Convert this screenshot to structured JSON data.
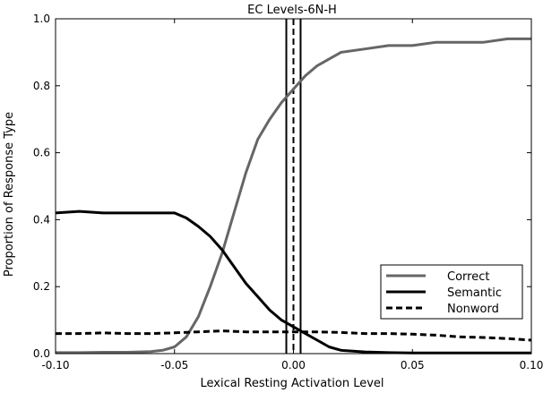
{
  "chart_data": {
    "type": "line",
    "title": "EC Levels-6N-H",
    "xlabel": "Lexical Resting Activation Level",
    "ylabel": "Proportion of Response Type",
    "xlim": [
      -0.1,
      0.1
    ],
    "ylim": [
      0.0,
      1.0
    ],
    "x_ticks": [
      -0.1,
      -0.05,
      0.0,
      0.05,
      0.1
    ],
    "x_tick_labels": [
      "-0.10",
      "-0.05",
      "0.00",
      "0.05",
      "0.10"
    ],
    "y_ticks": [
      0.0,
      0.2,
      0.4,
      0.6,
      0.8,
      1.0
    ],
    "y_tick_labels": [
      "0.0",
      "0.2",
      "0.4",
      "0.6",
      "0.8",
      "1.0"
    ],
    "grid": false,
    "legend_position": "lower-right",
    "series": [
      {
        "name": "Correct",
        "color": "#666666",
        "line_style": "solid",
        "x": [
          -0.1,
          -0.09,
          -0.08,
          -0.07,
          -0.06,
          -0.055,
          -0.05,
          -0.045,
          -0.04,
          -0.035,
          -0.03,
          -0.025,
          -0.02,
          -0.015,
          -0.01,
          -0.005,
          0.0,
          0.005,
          0.01,
          0.015,
          0.02,
          0.03,
          0.04,
          0.05,
          0.06,
          0.07,
          0.08,
          0.09,
          0.1
        ],
        "y": [
          0.003,
          0.003,
          0.004,
          0.004,
          0.006,
          0.01,
          0.02,
          0.05,
          0.11,
          0.2,
          0.3,
          0.42,
          0.54,
          0.64,
          0.7,
          0.75,
          0.79,
          0.83,
          0.86,
          0.88,
          0.9,
          0.91,
          0.92,
          0.92,
          0.93,
          0.93,
          0.93,
          0.94,
          0.94
        ]
      },
      {
        "name": "Semantic",
        "color": "#000000",
        "line_style": "solid",
        "x": [
          -0.1,
          -0.09,
          -0.08,
          -0.07,
          -0.06,
          -0.05,
          -0.045,
          -0.04,
          -0.035,
          -0.03,
          -0.025,
          -0.02,
          -0.015,
          -0.01,
          -0.005,
          0.0,
          0.005,
          0.01,
          0.015,
          0.02,
          0.03,
          0.04,
          0.05,
          0.06,
          0.07,
          0.08,
          0.09,
          0.1
        ],
        "y": [
          0.42,
          0.425,
          0.42,
          0.42,
          0.42,
          0.42,
          0.405,
          0.38,
          0.35,
          0.31,
          0.26,
          0.21,
          0.17,
          0.13,
          0.1,
          0.08,
          0.06,
          0.04,
          0.02,
          0.01,
          0.005,
          0.003,
          0.002,
          0.002,
          0.002,
          0.002,
          0.002,
          0.002
        ]
      },
      {
        "name": "Nonword",
        "color": "#000000",
        "line_style": "dashed",
        "x": [
          -0.1,
          -0.09,
          -0.08,
          -0.07,
          -0.06,
          -0.05,
          -0.04,
          -0.03,
          -0.02,
          -0.01,
          0.0,
          0.01,
          0.02,
          0.03,
          0.04,
          0.05,
          0.06,
          0.07,
          0.08,
          0.09,
          0.1
        ],
        "y": [
          0.06,
          0.06,
          0.062,
          0.06,
          0.06,
          0.062,
          0.065,
          0.068,
          0.065,
          0.065,
          0.065,
          0.065,
          0.063,
          0.06,
          0.06,
          0.058,
          0.055,
          0.05,
          0.048,
          0.045,
          0.04
        ]
      }
    ],
    "vertical_lines": [
      {
        "x": -0.003,
        "line_style": "solid"
      },
      {
        "x": 0.0,
        "line_style": "dashed"
      },
      {
        "x": 0.003,
        "line_style": "solid"
      }
    ]
  }
}
